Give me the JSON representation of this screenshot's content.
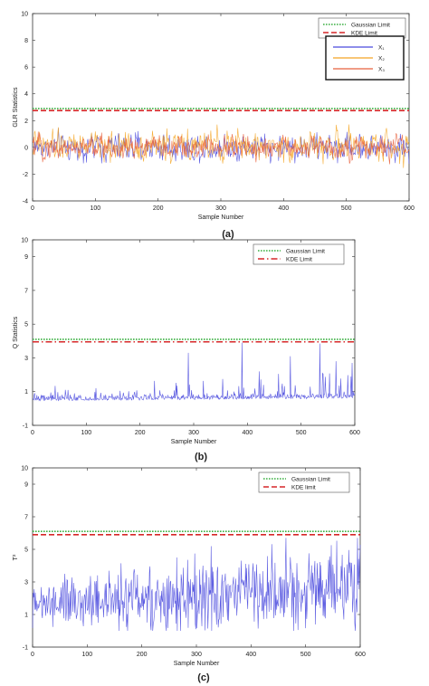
{
  "chart_data": [
    {
      "type": "line",
      "panel_label": "(a)",
      "xlabel": "Sample Number",
      "ylabel": "GLR Statistics",
      "xlim": [
        0,
        600
      ],
      "ylim": [
        -4,
        10
      ],
      "xticks": [
        0,
        100,
        200,
        300,
        400,
        500,
        600
      ],
      "yticks": [
        -4,
        -2,
        0,
        2,
        4,
        6,
        8,
        10
      ],
      "grid": false,
      "legend_position": "top-right",
      "legend2_position": "upper-right, below first legend",
      "limits": [
        {
          "name": "Gaussian Limit",
          "value": 2.9,
          "color": "#3cb043",
          "style": "dotted"
        },
        {
          "name": "KDE Limit",
          "value": 2.75,
          "color": "#d62728",
          "style": "dashed"
        }
      ],
      "series": [
        {
          "name": "X₁",
          "color": "#4a4ade",
          "mean": 0.0,
          "spread": 0.75,
          "min": -2.6,
          "max": 2.3
        },
        {
          "name": "X₂",
          "color": "#f4a524",
          "mean": 0.1,
          "spread": 0.8,
          "min": -2.5,
          "max": 2.6
        },
        {
          "name": "X₃",
          "color": "#e8603c",
          "mean": 0.0,
          "spread": 0.65,
          "min": -2.3,
          "max": 2.0
        }
      ]
    },
    {
      "type": "line",
      "panel_label": "(b)",
      "xlabel": "Sample Number",
      "ylabel": "Q Statistics",
      "xlim": [
        0,
        600
      ],
      "ylim": [
        -1,
        10
      ],
      "xticks": [
        0,
        100,
        200,
        300,
        400,
        500,
        600
      ],
      "yticks": [
        -1,
        1,
        3,
        5,
        7,
        9,
        10
      ],
      "grid": false,
      "legend_position": "top-right",
      "limits": [
        {
          "name": "Gaussian Limit",
          "value": 4.1,
          "color": "#3cb043",
          "style": "dotted"
        },
        {
          "name": "KDE Limit",
          "value": 3.95,
          "color": "#d62728",
          "style": "dashdot"
        }
      ],
      "series": [
        {
          "name": "Q",
          "color": "#4a4ade",
          "baseline_start": 0.45,
          "baseline_end": 0.6,
          "min": 0.15,
          "peaks": [
            [
              290,
              3.3
            ],
            [
              390,
              3.9
            ],
            [
              480,
              3.1
            ],
            [
              535,
              3.85
            ],
            [
              565,
              2.8
            ],
            [
              595,
              2.7
            ]
          ]
        }
      ]
    },
    {
      "type": "line",
      "panel_label": "(c)",
      "xlabel": "Sample Number",
      "ylabel": "T²",
      "xlim": [
        0,
        600
      ],
      "ylim": [
        -1,
        10
      ],
      "xticks": [
        0,
        100,
        200,
        300,
        400,
        500,
        600
      ],
      "yticks": [
        -1,
        1,
        3,
        5,
        7,
        9,
        10
      ],
      "grid": false,
      "legend_position": "top-right",
      "limits": [
        {
          "name": "Gaussian Limit",
          "value": 6.1,
          "color": "#3cb043",
          "style": "dotted"
        },
        {
          "name": "KDE limit",
          "value": 5.9,
          "color": "#d62728",
          "style": "dashed"
        }
      ],
      "series": [
        {
          "name": "T²",
          "color": "#4a4ade",
          "mean_start": 1.6,
          "mean_end": 2.8,
          "min": 0.0,
          "max": 5.7
        }
      ]
    }
  ]
}
